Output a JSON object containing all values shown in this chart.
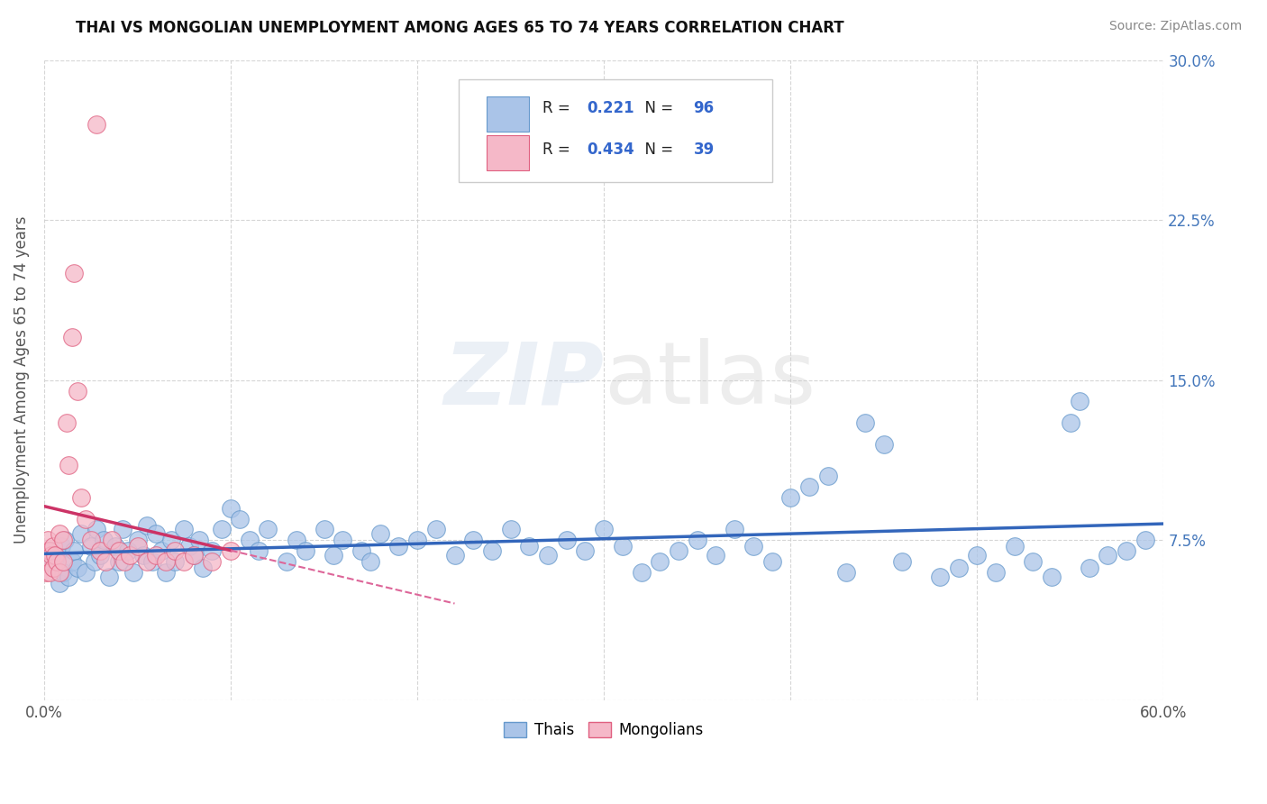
{
  "title": "THAI VS MONGOLIAN UNEMPLOYMENT AMONG AGES 65 TO 74 YEARS CORRELATION CHART",
  "source": "Source: ZipAtlas.com",
  "ylabel": "Unemployment Among Ages 65 to 74 years",
  "xlim": [
    0.0,
    0.6
  ],
  "ylim": [
    0.0,
    0.3
  ],
  "xticks": [
    0.0,
    0.1,
    0.2,
    0.3,
    0.4,
    0.5,
    0.6
  ],
  "xticklabels": [
    "0.0%",
    "",
    "",
    "",
    "",
    "",
    "60.0%"
  ],
  "ytick_vals": [
    0.0,
    0.075,
    0.15,
    0.225,
    0.3
  ],
  "ytick_right_labels": [
    "",
    "7.5%",
    "15.0%",
    "22.5%",
    "30.0%"
  ],
  "grid_color": "#cccccc",
  "background_color": "#ffffff",
  "thai_color": "#aac4e8",
  "thai_edge_color": "#6699cc",
  "mongolian_color": "#f5b8c8",
  "mongolian_edge_color": "#e06080",
  "thai_R": "0.221",
  "thai_N": "96",
  "mongolian_R": "0.434",
  "mongolian_N": "39",
  "thai_line_color": "#3366bb",
  "mongolian_line_color": "#cc3366",
  "mongolian_line_dashed_color": "#dd6699",
  "legend_label_thai": "Thais",
  "legend_label_mongolian": "Mongolians",
  "watermark_zip": "ZIP",
  "watermark_atlas": "atlas",
  "thai_scatter_x": [
    0.002,
    0.003,
    0.005,
    0.007,
    0.008,
    0.009,
    0.01,
    0.011,
    0.013,
    0.015,
    0.016,
    0.018,
    0.02,
    0.022,
    0.025,
    0.027,
    0.028,
    0.03,
    0.032,
    0.035,
    0.038,
    0.04,
    0.042,
    0.045,
    0.048,
    0.05,
    0.053,
    0.055,
    0.058,
    0.06,
    0.063,
    0.065,
    0.068,
    0.07,
    0.075,
    0.078,
    0.08,
    0.083,
    0.085,
    0.09,
    0.095,
    0.1,
    0.105,
    0.11,
    0.115,
    0.12,
    0.13,
    0.135,
    0.14,
    0.15,
    0.155,
    0.16,
    0.17,
    0.175,
    0.18,
    0.19,
    0.2,
    0.21,
    0.22,
    0.23,
    0.24,
    0.25,
    0.26,
    0.27,
    0.28,
    0.29,
    0.3,
    0.31,
    0.32,
    0.33,
    0.34,
    0.35,
    0.36,
    0.37,
    0.38,
    0.39,
    0.4,
    0.41,
    0.42,
    0.43,
    0.44,
    0.45,
    0.46,
    0.48,
    0.49,
    0.5,
    0.51,
    0.52,
    0.53,
    0.54,
    0.55,
    0.555,
    0.56,
    0.57,
    0.58,
    0.59
  ],
  "thai_scatter_y": [
    0.065,
    0.07,
    0.062,
    0.068,
    0.055,
    0.072,
    0.06,
    0.075,
    0.058,
    0.065,
    0.07,
    0.062,
    0.078,
    0.06,
    0.072,
    0.065,
    0.08,
    0.068,
    0.075,
    0.058,
    0.072,
    0.065,
    0.08,
    0.07,
    0.06,
    0.075,
    0.068,
    0.082,
    0.065,
    0.078,
    0.07,
    0.06,
    0.075,
    0.065,
    0.08,
    0.072,
    0.068,
    0.075,
    0.062,
    0.07,
    0.08,
    0.09,
    0.085,
    0.075,
    0.07,
    0.08,
    0.065,
    0.075,
    0.07,
    0.08,
    0.068,
    0.075,
    0.07,
    0.065,
    0.078,
    0.072,
    0.075,
    0.08,
    0.068,
    0.075,
    0.07,
    0.08,
    0.072,
    0.068,
    0.075,
    0.07,
    0.08,
    0.072,
    0.06,
    0.065,
    0.07,
    0.075,
    0.068,
    0.08,
    0.072,
    0.065,
    0.095,
    0.1,
    0.105,
    0.06,
    0.13,
    0.12,
    0.065,
    0.058,
    0.062,
    0.068,
    0.06,
    0.072,
    0.065,
    0.058,
    0.13,
    0.14,
    0.062,
    0.068,
    0.07,
    0.075
  ],
  "mongolian_scatter_x": [
    0.001,
    0.001,
    0.002,
    0.002,
    0.003,
    0.003,
    0.004,
    0.005,
    0.005,
    0.006,
    0.007,
    0.008,
    0.008,
    0.01,
    0.01,
    0.012,
    0.013,
    0.015,
    0.016,
    0.018,
    0.02,
    0.022,
    0.025,
    0.028,
    0.03,
    0.033,
    0.036,
    0.04,
    0.043,
    0.046,
    0.05,
    0.055,
    0.06,
    0.065,
    0.07,
    0.075,
    0.08,
    0.09,
    0.1
  ],
  "mongolian_scatter_y": [
    0.07,
    0.06,
    0.075,
    0.065,
    0.07,
    0.06,
    0.068,
    0.072,
    0.062,
    0.068,
    0.065,
    0.078,
    0.06,
    0.075,
    0.065,
    0.13,
    0.11,
    0.17,
    0.2,
    0.145,
    0.095,
    0.085,
    0.075,
    0.27,
    0.07,
    0.065,
    0.075,
    0.07,
    0.065,
    0.068,
    0.072,
    0.065,
    0.068,
    0.065,
    0.07,
    0.065,
    0.068,
    0.065,
    0.07
  ]
}
